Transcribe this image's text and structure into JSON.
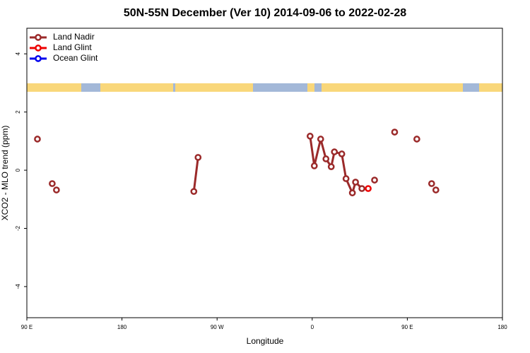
{
  "chart_data": {
    "type": "line",
    "title": "50N-55N December (Ver 10)   2014-09-06 to 2022-02-28",
    "xlabel": "Longitude",
    "ylabel": "XCO2 - MLO trend (ppm)",
    "xlim": [
      90,
      540
    ],
    "xticks": [
      {
        "value": 90,
        "label": "90 E"
      },
      180,
      {
        "value": 270,
        "label": "90 W"
      },
      {
        "value": 360,
        "label": "0"
      },
      {
        "value": 450,
        "label": "90 E"
      },
      {
        "value": 540,
        "label": "180"
      }
    ],
    "ylim": [
      -5.07,
      4.88
    ],
    "yticks": [
      -4,
      -2,
      0,
      2,
      4
    ],
    "legend": "top-left",
    "series": [
      {
        "name": "Land Nadir",
        "color": "#9b2a2a",
        "x": [
          100,
          null,
          114,
          null,
          118,
          null,
          248,
          252,
          null,
          358,
          362,
          368,
          373,
          378,
          381,
          388,
          392,
          398,
          401,
          407,
          null,
          419,
          null,
          438,
          null,
          459,
          null,
          473,
          null,
          477
        ],
        "values": [
          1.07,
          null,
          -0.46,
          null,
          -0.68,
          null,
          -0.73,
          0.44,
          null,
          1.17,
          0.15,
          1.07,
          0.39,
          0.12,
          0.63,
          0.56,
          -0.29,
          -0.78,
          -0.41,
          -0.63,
          null,
          -0.34,
          null,
          1.31,
          null,
          1.07,
          null,
          -0.46,
          null,
          -0.68
        ]
      },
      {
        "name": "Land Glint",
        "color": "#ee0000",
        "x": [
          413
        ],
        "values": [
          -0.63
        ]
      },
      {
        "name": "Ocean Glint",
        "color": "#0000ee",
        "x": [],
        "values": []
      }
    ]
  }
}
